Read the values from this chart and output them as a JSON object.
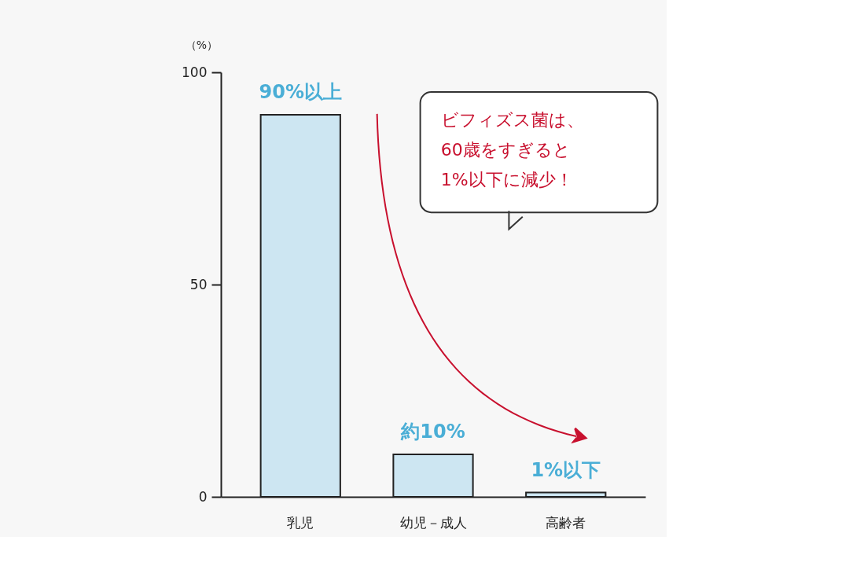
{
  "chart_data": {
    "type": "bar",
    "categories": [
      "乳児",
      "幼児－成人",
      "高齢者"
    ],
    "values": [
      90,
      10,
      1
    ],
    "color": "#cde6f2",
    "value_labels": [
      "90%以上",
      "約10%",
      "1%以下"
    ],
    "ylabel": "（%）",
    "ylim": [
      0,
      100
    ],
    "yticks": [
      0,
      50,
      100
    ],
    "grid": false,
    "annotations": [
      "ビフィズス菌は、\n60歳をすぎると\n1%以下に減少！"
    ]
  }
}
